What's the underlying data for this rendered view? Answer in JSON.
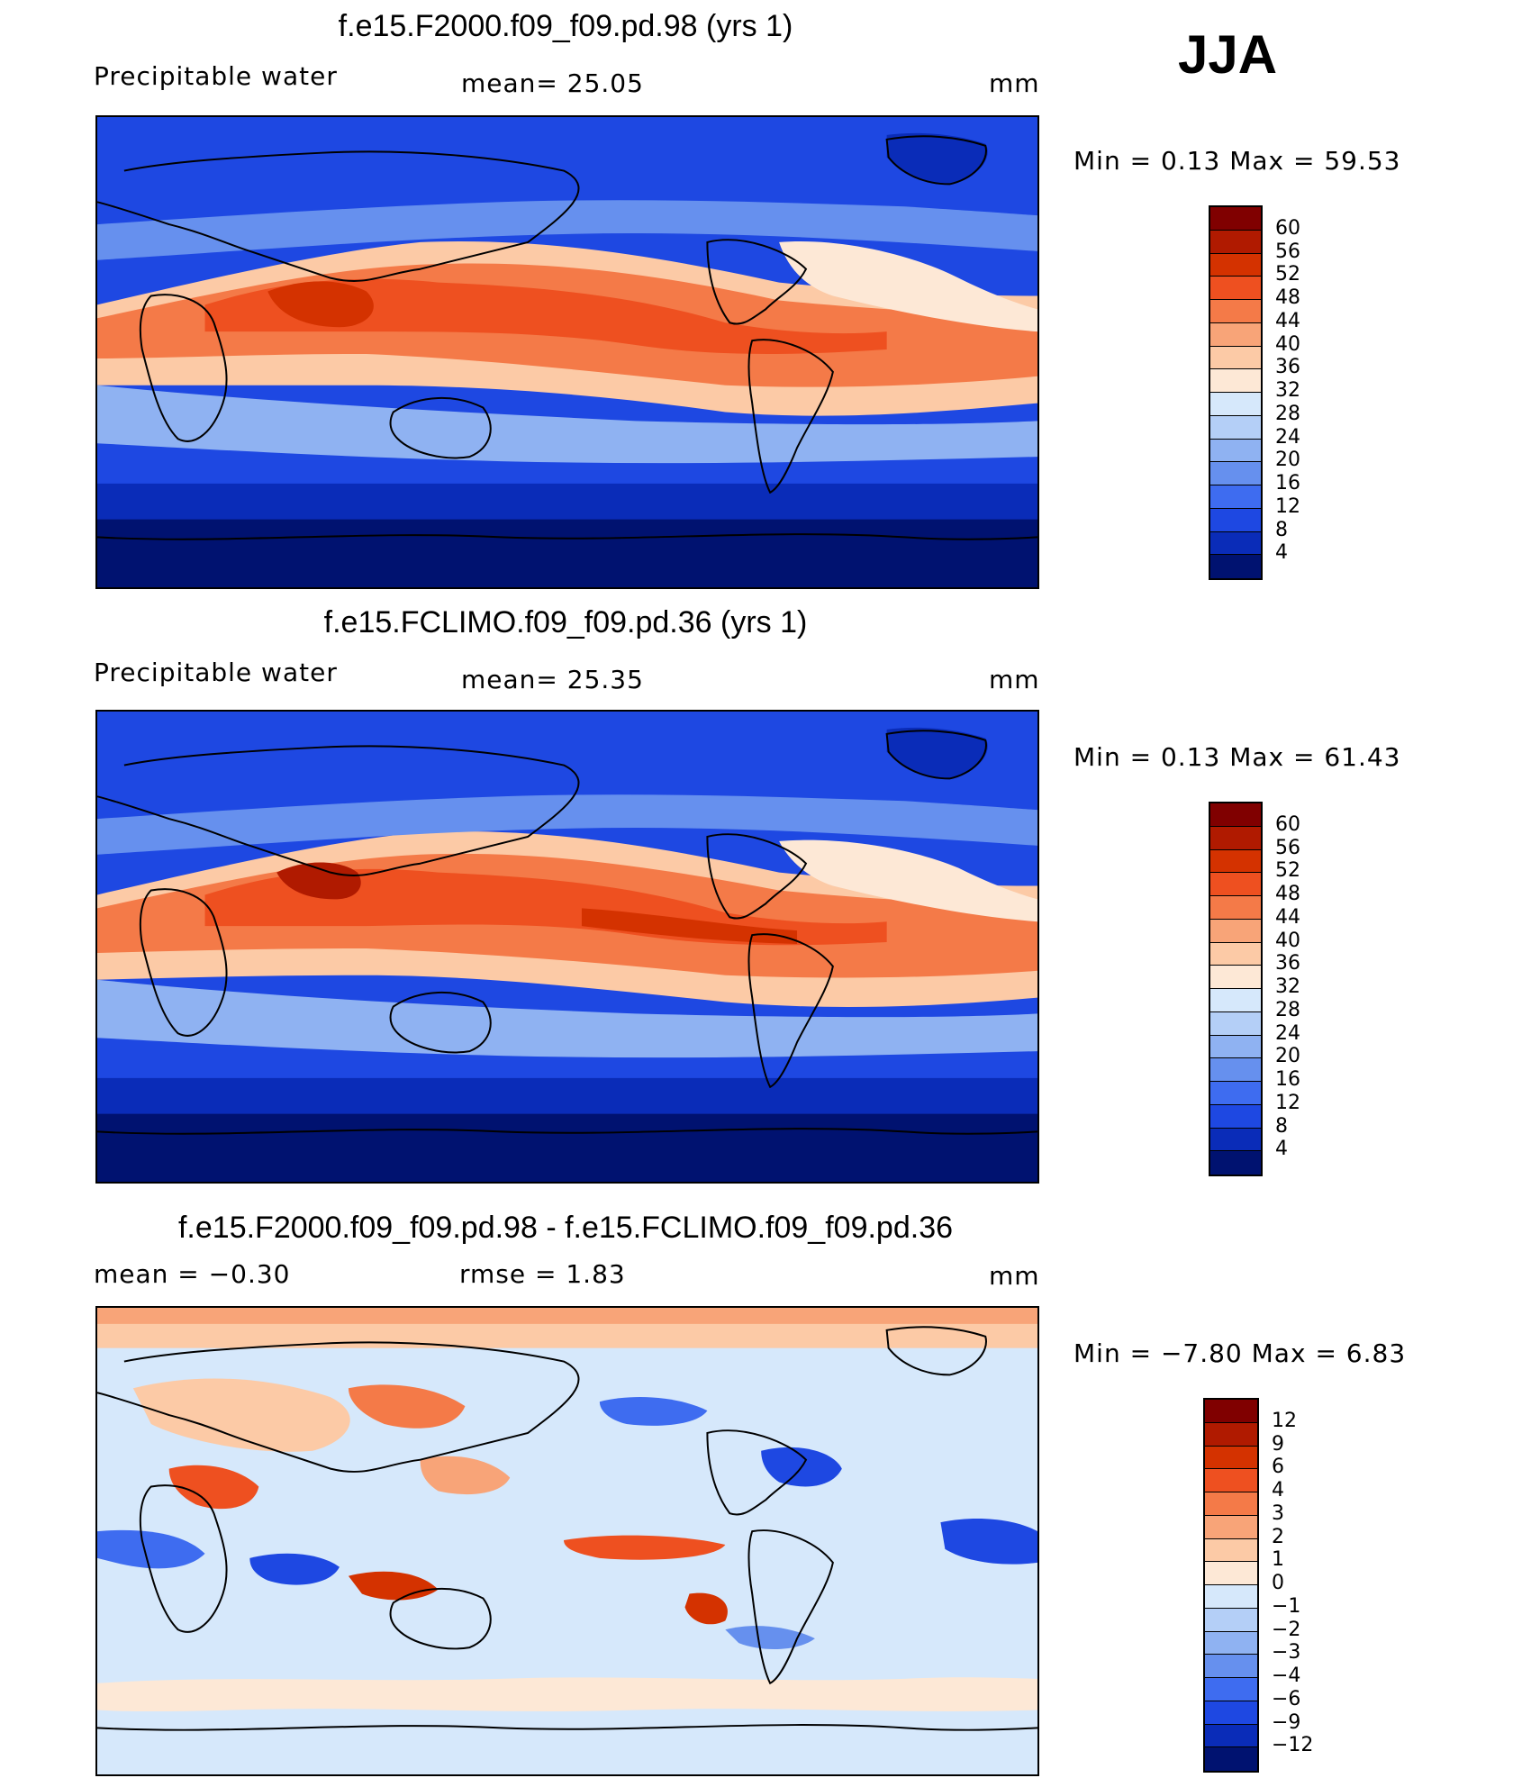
{
  "season": "JJA",
  "panels": [
    {
      "title": "f.e15.F2000.f09_f09.pd.98 (yrs 1)",
      "left_label": "Precipitable  water",
      "center_label": "mean=   25.05",
      "units": "mm",
      "minmax": "Min  =     0.13  Max  =    59.53",
      "colorbar": {
        "labels": [
          "60",
          "56",
          "52",
          "48",
          "44",
          "40",
          "36",
          "32",
          "28",
          "24",
          "20",
          "16",
          "12",
          "8",
          "4"
        ],
        "colors": [
          "#800000",
          "#b01a00",
          "#d43200",
          "#ee5020",
          "#f47a48",
          "#f8a478",
          "#fccaa6",
          "#fde8d6",
          "#d6e8fb",
          "#b4cff7",
          "#8fb2f2",
          "#6690ee",
          "#3e6cf0",
          "#1e48e2",
          "#0a2cb8",
          "#001270"
        ]
      }
    },
    {
      "title": "f.e15.FCLIMO.f09_f09.pd.36 (yrs 1)",
      "left_label": "Precipitable  water",
      "center_label": "mean=   25.35",
      "units": "mm",
      "minmax": "Min  =     0.13  Max  =    61.43",
      "colorbar": {
        "labels": [
          "60",
          "56",
          "52",
          "48",
          "44",
          "40",
          "36",
          "32",
          "28",
          "24",
          "20",
          "16",
          "12",
          "8",
          "4"
        ],
        "colors": [
          "#800000",
          "#b01a00",
          "#d43200",
          "#ee5020",
          "#f47a48",
          "#f8a478",
          "#fccaa6",
          "#fde8d6",
          "#d6e8fb",
          "#b4cff7",
          "#8fb2f2",
          "#6690ee",
          "#3e6cf0",
          "#1e48e2",
          "#0a2cb8",
          "#001270"
        ]
      }
    },
    {
      "title": "f.e15.F2000.f09_f09.pd.98 - f.e15.FCLIMO.f09_f09.pd.36",
      "left_label": "mean  =    −0.30",
      "center_label": "rmse  =     1.83",
      "units": "mm",
      "minmax": "Min  =   −7.80  Max  =      6.83",
      "colorbar": {
        "labels": [
          "12",
          "9",
          "6",
          "4",
          "3",
          "2",
          "1",
          "0",
          "−1",
          "−2",
          "−3",
          "−4",
          "−6",
          "−9",
          "−12"
        ],
        "colors": [
          "#800000",
          "#b01a00",
          "#d43200",
          "#ee5020",
          "#f47a48",
          "#f8a478",
          "#fccaa6",
          "#fde8d6",
          "#d6e8fb",
          "#b4cff7",
          "#8fb2f2",
          "#6690ee",
          "#3e6cf0",
          "#1e48e2",
          "#0a2cb8",
          "#001270"
        ]
      }
    }
  ]
}
